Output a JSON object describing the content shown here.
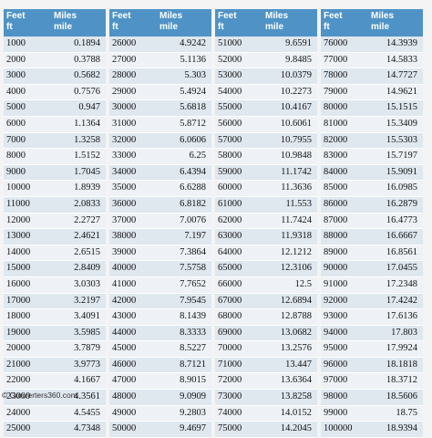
{
  "header": {
    "col1_line1": "Feet",
    "col1_line2": "ft",
    "col2_line1": "Miles",
    "col2_line2": "mile"
  },
  "tables": [
    {
      "rows": [
        [
          "1000",
          "0.1894"
        ],
        [
          "2000",
          "0.3788"
        ],
        [
          "3000",
          "0.5682"
        ],
        [
          "4000",
          "0.7576"
        ],
        [
          "5000",
          "0.947"
        ],
        [
          "6000",
          "1.1364"
        ],
        [
          "7000",
          "1.3258"
        ],
        [
          "8000",
          "1.5152"
        ],
        [
          "9000",
          "1.7045"
        ],
        [
          "10000",
          "1.8939"
        ],
        [
          "11000",
          "2.0833"
        ],
        [
          "12000",
          "2.2727"
        ],
        [
          "13000",
          "2.4621"
        ],
        [
          "14000",
          "2.6515"
        ],
        [
          "15000",
          "2.8409"
        ],
        [
          "16000",
          "3.0303"
        ],
        [
          "17000",
          "3.2197"
        ],
        [
          "18000",
          "3.4091"
        ],
        [
          "19000",
          "3.5985"
        ],
        [
          "20000",
          "3.7879"
        ],
        [
          "21000",
          "3.9773"
        ],
        [
          "22000",
          "4.1667"
        ],
        [
          "23000",
          "4.3561"
        ],
        [
          "24000",
          "4.5455"
        ],
        [
          "25000",
          "4.7348"
        ]
      ]
    },
    {
      "rows": [
        [
          "26000",
          "4.9242"
        ],
        [
          "27000",
          "5.1136"
        ],
        [
          "28000",
          "5.303"
        ],
        [
          "29000",
          "5.4924"
        ],
        [
          "30000",
          "5.6818"
        ],
        [
          "31000",
          "5.8712"
        ],
        [
          "32000",
          "6.0606"
        ],
        [
          "33000",
          "6.25"
        ],
        [
          "34000",
          "6.4394"
        ],
        [
          "35000",
          "6.6288"
        ],
        [
          "36000",
          "6.8182"
        ],
        [
          "37000",
          "7.0076"
        ],
        [
          "38000",
          "7.197"
        ],
        [
          "39000",
          "7.3864"
        ],
        [
          "40000",
          "7.5758"
        ],
        [
          "41000",
          "7.7652"
        ],
        [
          "42000",
          "7.9545"
        ],
        [
          "43000",
          "8.1439"
        ],
        [
          "44000",
          "8.3333"
        ],
        [
          "45000",
          "8.5227"
        ],
        [
          "46000",
          "8.7121"
        ],
        [
          "47000",
          "8.9015"
        ],
        [
          "48000",
          "9.0909"
        ],
        [
          "49000",
          "9.2803"
        ],
        [
          "50000",
          "9.4697"
        ]
      ]
    },
    {
      "rows": [
        [
          "51000",
          "9.6591"
        ],
        [
          "52000",
          "9.8485"
        ],
        [
          "53000",
          "10.0379"
        ],
        [
          "54000",
          "10.2273"
        ],
        [
          "55000",
          "10.4167"
        ],
        [
          "56000",
          "10.6061"
        ],
        [
          "57000",
          "10.7955"
        ],
        [
          "58000",
          "10.9848"
        ],
        [
          "59000",
          "11.1742"
        ],
        [
          "60000",
          "11.3636"
        ],
        [
          "61000",
          "11.553"
        ],
        [
          "62000",
          "11.7424"
        ],
        [
          "63000",
          "11.9318"
        ],
        [
          "64000",
          "12.1212"
        ],
        [
          "65000",
          "12.3106"
        ],
        [
          "66000",
          "12.5"
        ],
        [
          "67000",
          "12.6894"
        ],
        [
          "68000",
          "12.8788"
        ],
        [
          "69000",
          "13.0682"
        ],
        [
          "70000",
          "13.2576"
        ],
        [
          "71000",
          "13.447"
        ],
        [
          "72000",
          "13.6364"
        ],
        [
          "73000",
          "13.8258"
        ],
        [
          "74000",
          "14.0152"
        ],
        [
          "75000",
          "14.2045"
        ]
      ]
    },
    {
      "rows": [
        [
          "76000",
          "14.3939"
        ],
        [
          "77000",
          "14.5833"
        ],
        [
          "78000",
          "14.7727"
        ],
        [
          "79000",
          "14.9621"
        ],
        [
          "80000",
          "15.1515"
        ],
        [
          "81000",
          "15.3409"
        ],
        [
          "82000",
          "15.5303"
        ],
        [
          "83000",
          "15.7197"
        ],
        [
          "84000",
          "15.9091"
        ],
        [
          "85000",
          "16.0985"
        ],
        [
          "86000",
          "16.2879"
        ],
        [
          "87000",
          "16.4773"
        ],
        [
          "88000",
          "16.6667"
        ],
        [
          "89000",
          "16.8561"
        ],
        [
          "90000",
          "17.0455"
        ],
        [
          "91000",
          "17.2348"
        ],
        [
          "92000",
          "17.4242"
        ],
        [
          "93000",
          "17.6136"
        ],
        [
          "94000",
          "17.803"
        ],
        [
          "95000",
          "17.9924"
        ],
        [
          "96000",
          "18.1818"
        ],
        [
          "97000",
          "18.3712"
        ],
        [
          "98000",
          "18.5606"
        ],
        [
          "99000",
          "18.75"
        ],
        [
          "100000",
          "18.9394"
        ]
      ]
    }
  ],
  "footer": {
    "copyright": "© Converters360.com"
  },
  "colors": {
    "header_bg": "#4f93c6",
    "row_odd": "#dfe7ef",
    "row_even": "#eef2f6"
  }
}
